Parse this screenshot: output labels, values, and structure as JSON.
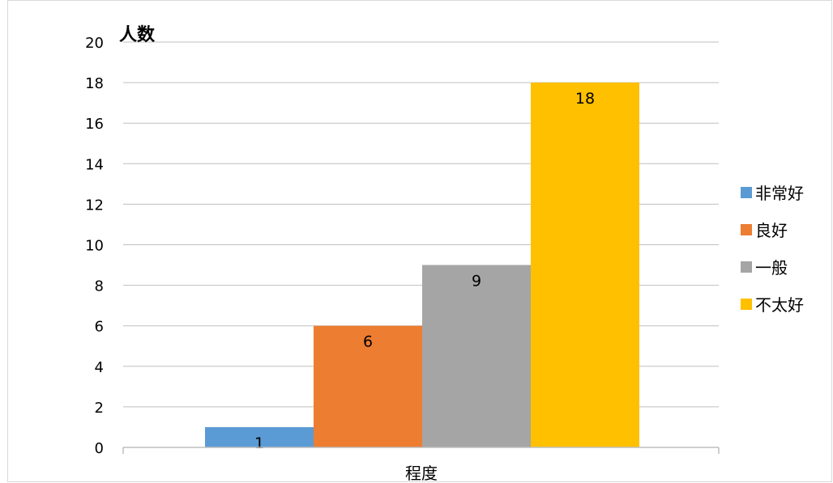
{
  "chart_data": {
    "type": "bar",
    "ylabel": "人数",
    "xlabel": "程度",
    "ylim": [
      0,
      20
    ],
    "yticks": [
      0,
      2,
      4,
      6,
      8,
      10,
      12,
      14,
      16,
      18,
      20
    ],
    "grid": true,
    "legend_position": "right",
    "series": [
      {
        "name": "非常好",
        "values": [
          1
        ],
        "color": "#5b9bd5"
      },
      {
        "name": "良好",
        "values": [
          6
        ],
        "color": "#ed7d31"
      },
      {
        "name": "一般",
        "values": [
          9
        ],
        "color": "#a5a5a5"
      },
      {
        "name": "不太好",
        "values": [
          18
        ],
        "color": "#ffc000"
      }
    ],
    "data_labels": [
      "1",
      "6",
      "9",
      "18"
    ]
  }
}
